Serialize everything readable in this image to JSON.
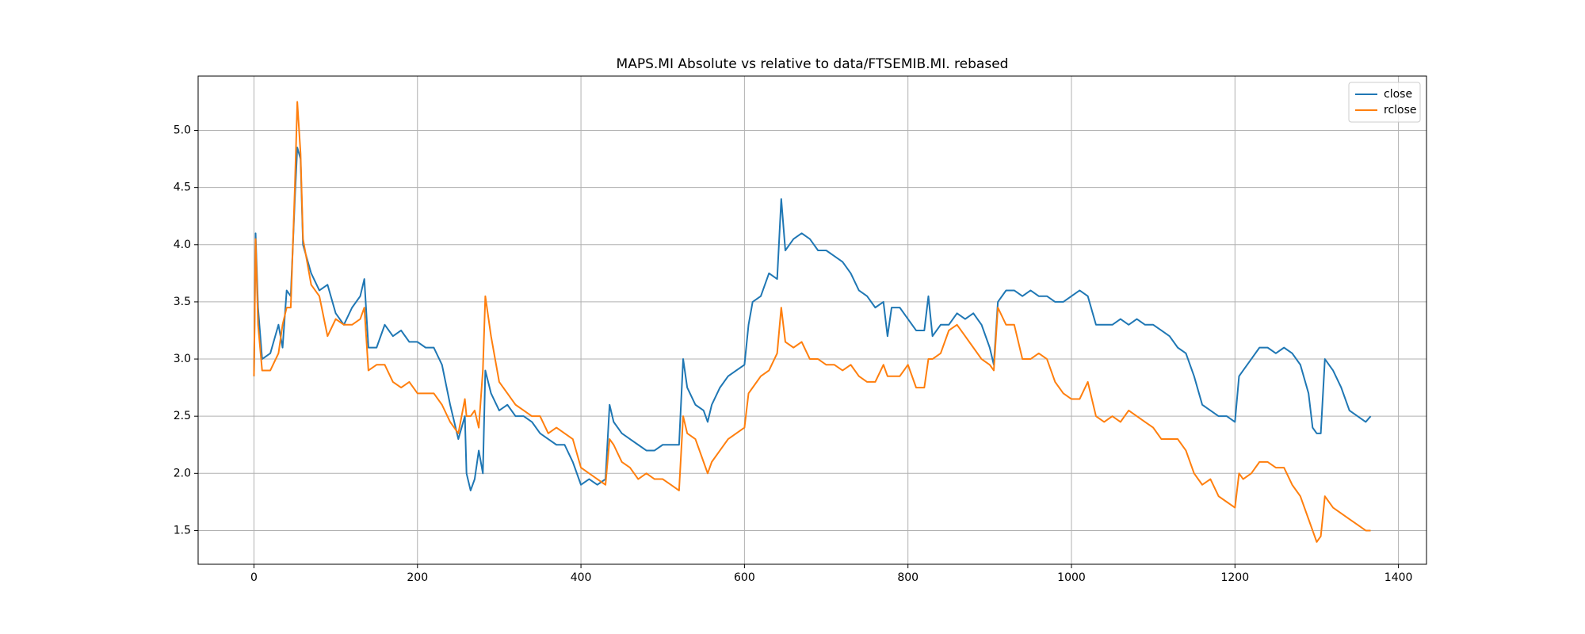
{
  "chart_data": {
    "type": "line",
    "title": "MAPS.MI Absolute vs relative to data/FTSEMIB.MI. rebased",
    "x": [
      0,
      2,
      5,
      10,
      20,
      30,
      35,
      40,
      45,
      50,
      53,
      57,
      60,
      70,
      80,
      90,
      100,
      110,
      120,
      130,
      135,
      140,
      150,
      160,
      170,
      180,
      190,
      200,
      210,
      220,
      230,
      240,
      250,
      258,
      260,
      265,
      270,
      275,
      280,
      283,
      290,
      300,
      310,
      320,
      330,
      340,
      350,
      360,
      370,
      380,
      390,
      400,
      410,
      420,
      430,
      435,
      440,
      450,
      460,
      470,
      480,
      490,
      500,
      510,
      520,
      525,
      530,
      540,
      550,
      555,
      560,
      570,
      580,
      590,
      600,
      605,
      610,
      620,
      630,
      640,
      645,
      650,
      660,
      670,
      680,
      690,
      700,
      710,
      720,
      730,
      740,
      750,
      760,
      770,
      775,
      780,
      790,
      800,
      810,
      820,
      825,
      830,
      840,
      850,
      860,
      870,
      880,
      890,
      900,
      905,
      910,
      920,
      930,
      940,
      950,
      960,
      970,
      980,
      990,
      1000,
      1010,
      1020,
      1030,
      1040,
      1050,
      1060,
      1070,
      1080,
      1090,
      1100,
      1110,
      1120,
      1130,
      1140,
      1150,
      1160,
      1170,
      1180,
      1190,
      1200,
      1205,
      1210,
      1220,
      1230,
      1240,
      1250,
      1260,
      1270,
      1280,
      1290,
      1295,
      1300,
      1305,
      1310,
      1320,
      1330,
      1340,
      1350,
      1360,
      1366
    ],
    "series": [
      {
        "name": "close",
        "color": "#1f77b4",
        "values": [
          2.85,
          4.1,
          3.45,
          3.0,
          3.05,
          3.3,
          3.1,
          3.6,
          3.55,
          4.4,
          4.85,
          4.75,
          4.0,
          3.75,
          3.6,
          3.65,
          3.4,
          3.3,
          3.45,
          3.55,
          3.7,
          3.1,
          3.1,
          3.3,
          3.2,
          3.25,
          3.15,
          3.15,
          3.1,
          3.1,
          2.95,
          2.6,
          2.3,
          2.5,
          2.0,
          1.85,
          1.95,
          2.2,
          2.0,
          2.9,
          2.7,
          2.55,
          2.6,
          2.5,
          2.5,
          2.45,
          2.35,
          2.3,
          2.25,
          2.25,
          2.1,
          1.9,
          1.95,
          1.9,
          1.95,
          2.6,
          2.45,
          2.35,
          2.3,
          2.25,
          2.2,
          2.2,
          2.25,
          2.25,
          2.25,
          3.0,
          2.75,
          2.6,
          2.55,
          2.45,
          2.6,
          2.75,
          2.85,
          2.9,
          2.95,
          3.3,
          3.5,
          3.55,
          3.75,
          3.7,
          4.4,
          3.95,
          4.05,
          4.1,
          4.05,
          3.95,
          3.95,
          3.9,
          3.85,
          3.75,
          3.6,
          3.55,
          3.45,
          3.5,
          3.2,
          3.45,
          3.45,
          3.35,
          3.25,
          3.25,
          3.55,
          3.2,
          3.3,
          3.3,
          3.4,
          3.35,
          3.4,
          3.3,
          3.1,
          2.95,
          3.5,
          3.6,
          3.6,
          3.55,
          3.6,
          3.55,
          3.55,
          3.5,
          3.5,
          3.55,
          3.6,
          3.55,
          3.3,
          3.3,
          3.3,
          3.35,
          3.3,
          3.35,
          3.3,
          3.3,
          3.25,
          3.2,
          3.1,
          3.05,
          2.85,
          2.6,
          2.55,
          2.5,
          2.5,
          2.45,
          2.85,
          2.9,
          3.0,
          3.1,
          3.1,
          3.05,
          3.1,
          3.05,
          2.95,
          2.7,
          2.4,
          2.35,
          2.35,
          3.0,
          2.9,
          2.75,
          2.55,
          2.5,
          2.45,
          2.5
        ]
      },
      {
        "name": "rclose",
        "color": "#ff7f0e",
        "values": [
          2.85,
          4.05,
          3.3,
          2.9,
          2.9,
          3.05,
          3.3,
          3.45,
          3.45,
          4.5,
          5.25,
          4.8,
          4.05,
          3.65,
          3.55,
          3.2,
          3.35,
          3.3,
          3.3,
          3.35,
          3.45,
          2.9,
          2.95,
          2.95,
          2.8,
          2.75,
          2.8,
          2.7,
          2.7,
          2.7,
          2.6,
          2.45,
          2.35,
          2.65,
          2.5,
          2.5,
          2.55,
          2.4,
          2.9,
          3.55,
          3.2,
          2.8,
          2.7,
          2.6,
          2.55,
          2.5,
          2.5,
          2.35,
          2.4,
          2.35,
          2.3,
          2.05,
          2.0,
          1.95,
          1.9,
          2.3,
          2.25,
          2.1,
          2.05,
          1.95,
          2.0,
          1.95,
          1.95,
          1.9,
          1.85,
          2.5,
          2.35,
          2.3,
          2.1,
          2.0,
          2.1,
          2.2,
          2.3,
          2.35,
          2.4,
          2.7,
          2.75,
          2.85,
          2.9,
          3.05,
          3.45,
          3.15,
          3.1,
          3.15,
          3.0,
          3.0,
          2.95,
          2.95,
          2.9,
          2.95,
          2.85,
          2.8,
          2.8,
          2.95,
          2.85,
          2.85,
          2.85,
          2.95,
          2.75,
          2.75,
          3.0,
          3.0,
          3.05,
          3.25,
          3.3,
          3.2,
          3.1,
          3.0,
          2.95,
          2.9,
          3.45,
          3.3,
          3.3,
          3.0,
          3.0,
          3.05,
          3.0,
          2.8,
          2.7,
          2.65,
          2.65,
          2.8,
          2.5,
          2.45,
          2.5,
          2.45,
          2.55,
          2.5,
          2.45,
          2.4,
          2.3,
          2.3,
          2.3,
          2.2,
          2.0,
          1.9,
          1.95,
          1.8,
          1.75,
          1.7,
          2.0,
          1.95,
          2.0,
          2.1,
          2.1,
          2.05,
          2.05,
          1.9,
          1.8,
          1.6,
          1.5,
          1.4,
          1.45,
          1.8,
          1.7,
          1.65,
          1.6,
          1.55,
          1.5,
          1.5
        ]
      }
    ],
    "xlim": [
      -68.3,
      1434.3
    ],
    "xticks": [
      0,
      200,
      400,
      600,
      800,
      1000,
      1200,
      1400
    ],
    "ylim": [
      1.205,
      5.475
    ],
    "yticks": [
      1.5,
      {
        "value": 2,
        "label": "2.0"
      },
      2.5,
      {
        "value": 3,
        "label": "3.0"
      },
      3.5,
      {
        "value": 4,
        "label": "4.0"
      },
      4.5,
      {
        "value": 5,
        "label": "5.0"
      }
    ],
    "grid": true,
    "legend": "upper right"
  }
}
